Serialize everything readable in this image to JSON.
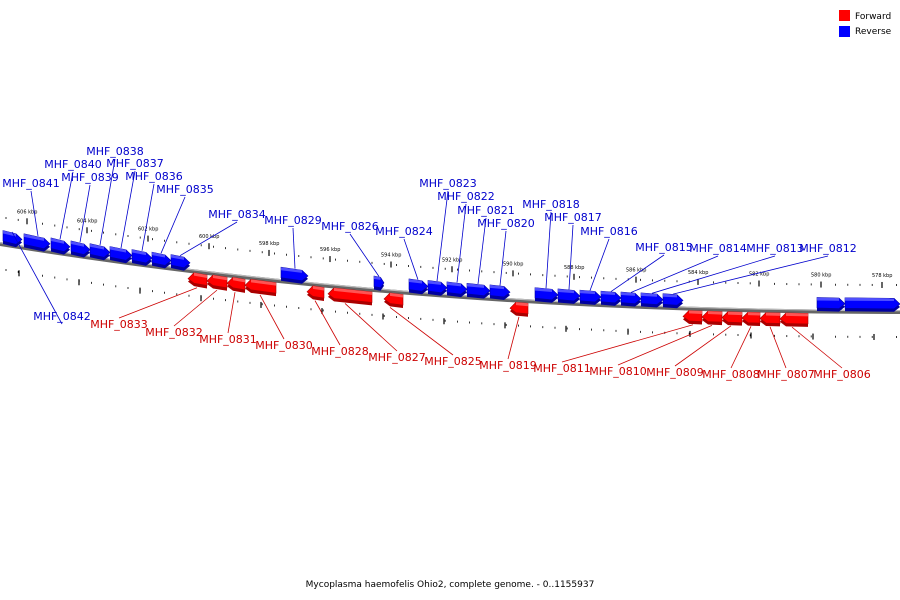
{
  "legend": [
    {
      "label": "Forward",
      "color": "#ff0000"
    },
    {
      "label": "Reverse",
      "color": "#0000ff"
    }
  ],
  "caption": "Mycoplasma haemofelis Ohio2, complete genome. - 0..1155937",
  "colors": {
    "forward": "#ff0000",
    "forward_light": "#ff7070",
    "forward_dark": "#aa0000",
    "forward_label": "#cc0000",
    "reverse": "#0000ff",
    "reverse_light": "#6a6aff",
    "reverse_dark": "#0000a0",
    "reverse_label": "#0000cc",
    "backbone": "#888888"
  },
  "ticks": [
    "606 kbp",
    "604 kbp",
    "602 kbp",
    "600 kbp",
    "598 kbp",
    "596 kbp",
    "594 kbp",
    "592 kbp",
    "590 kbp",
    "588 kbp",
    "586 kbp",
    "584 kbp",
    "582 kbp",
    "580 kbp",
    "578 kbp"
  ],
  "reverse_genes": [
    "MHF_0842",
    "MHF_0841",
    "MHF_0840",
    "MHF_0839",
    "MHF_0838",
    "MHF_0837",
    "MHF_0836",
    "MHF_0835",
    "MHF_0834",
    "MHF_0829",
    "MHF_0826",
    "MHF_0824",
    "MHF_0823",
    "MHF_0822",
    "MHF_0821",
    "MHF_0820",
    "MHF_0818",
    "MHF_0817",
    "MHF_0816",
    "MHF_0815",
    "MHF_0814",
    "MHF_0813",
    "MHF_0812"
  ],
  "forward_genes": [
    "MHF_0833",
    "MHF_0832",
    "MHF_0831",
    "MHF_0830",
    "MHF_0828",
    "MHF_0827",
    "MHF_0825",
    "MHF_0819",
    "MHF_0811",
    "MHF_0810",
    "MHF_0809",
    "MHF_0808",
    "MHF_0807",
    "MHF_0806"
  ]
}
